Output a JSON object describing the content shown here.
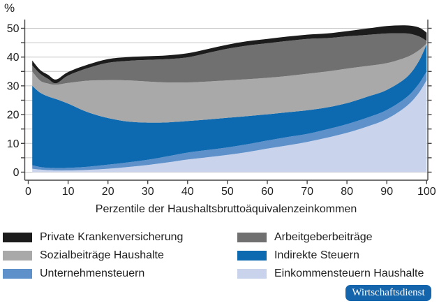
{
  "chart_data": {
    "type": "area",
    "stacked": true,
    "title": "",
    "xlabel": "Perzentile der Haushaltsbruttoäquivalenzeinkommen",
    "ylabel": "%",
    "xlim": [
      0,
      100
    ],
    "ylim": [
      0,
      50
    ],
    "x_ticks": [
      0,
      10,
      20,
      30,
      40,
      50,
      60,
      70,
      80,
      90,
      100
    ],
    "y_ticks": [
      0,
      10,
      20,
      30,
      40,
      50
    ],
    "y_minor_tick_step": 5,
    "grid": "horizontal gridlines every 5, light gray",
    "legend_position": "below, two columns",
    "x": [
      1,
      3,
      5,
      7,
      10,
      15,
      20,
      25,
      30,
      35,
      40,
      45,
      50,
      55,
      60,
      65,
      70,
      75,
      80,
      85,
      90,
      95,
      98,
      100
    ],
    "series": [
      {
        "name": "Einkommensteuern Haushalte",
        "color": "#c9d4ec",
        "values": [
          1.2,
          0.9,
          0.7,
          0.6,
          0.6,
          0.8,
          1.2,
          1.8,
          2.5,
          3.4,
          4.4,
          5.2,
          6.0,
          7.0,
          8.2,
          9.3,
          10.5,
          12.0,
          13.7,
          15.8,
          18.5,
          23.0,
          27.5,
          32.0
        ]
      },
      {
        "name": "Unternehmensteuern",
        "color": "#5e90ca",
        "values": [
          1.2,
          0.9,
          0.8,
          0.8,
          0.9,
          1.1,
          1.4,
          1.6,
          1.8,
          2.1,
          2.4,
          2.5,
          2.6,
          2.7,
          2.8,
          2.9,
          2.8,
          2.9,
          3.0,
          3.1,
          3.1,
          3.1,
          3.1,
          3.0
        ]
      },
      {
        "name": "Indirekte Steuern",
        "color": "#0e6ab0",
        "values": [
          27.6,
          25.8,
          24.8,
          24.0,
          22.3,
          18.9,
          16.2,
          14.2,
          12.9,
          11.8,
          11.0,
          10.6,
          10.3,
          9.8,
          9.1,
          8.6,
          8.2,
          7.6,
          7.3,
          7.3,
          7.0,
          6.9,
          7.9,
          9.5
        ]
      },
      {
        "name": "Sozialbeiträge Haushalte",
        "color": "#a9a9a9",
        "values": [
          5.0,
          4.2,
          4.5,
          5.0,
          7.2,
          11.0,
          13.2,
          14.3,
          14.3,
          13.9,
          13.4,
          13.2,
          13.0,
          12.8,
          12.7,
          12.6,
          12.7,
          12.5,
          12.0,
          10.7,
          9.3,
          7.0,
          3.8,
          0.2
        ]
      },
      {
        "name": "Arbeitgeberbeiträge",
        "color": "#707070",
        "values": [
          2.1,
          2.4,
          1.6,
          0.5,
          2.6,
          4.4,
          6.0,
          6.8,
          7.5,
          8.1,
          8.7,
          9.9,
          11.0,
          11.7,
          12.0,
          12.2,
          12.1,
          11.6,
          11.2,
          10.8,
          10.3,
          8.2,
          4.9,
          0.9
        ]
      },
      {
        "name": "Private Krankenversicherung",
        "color": "#1c1c1c",
        "values": [
          1.7,
          1.3,
          1.4,
          1.3,
          1.2,
          1.2,
          1.3,
          1.3,
          1.3,
          1.3,
          1.4,
          1.4,
          1.4,
          1.5,
          1.5,
          1.5,
          1.5,
          1.6,
          1.8,
          2.2,
          2.6,
          2.8,
          3.1,
          2.9
        ]
      }
    ]
  },
  "legend": {
    "items": [
      {
        "label": "Private Krankenversicherung",
        "color": "#1c1c1c"
      },
      {
        "label": "Arbeitgeberbeiträge",
        "color": "#707070"
      },
      {
        "label": "Sozialbeiträge Haushalte",
        "color": "#a9a9a9"
      },
      {
        "label": "Indirekte Steuern",
        "color": "#0e6ab0"
      },
      {
        "label": "Unternehmensteuern",
        "color": "#5e90ca"
      },
      {
        "label": "Einkommensteuern Haushalte",
        "color": "#c9d4ec"
      }
    ]
  },
  "badge": {
    "label": "Wirtschaftsdienst",
    "bg": "#1565ad",
    "text_color": "#ffffff"
  },
  "style": {
    "gridline_color": "#c6c6c6",
    "axis_color": "#454545",
    "tick_label_color": "#1f1f1f"
  }
}
